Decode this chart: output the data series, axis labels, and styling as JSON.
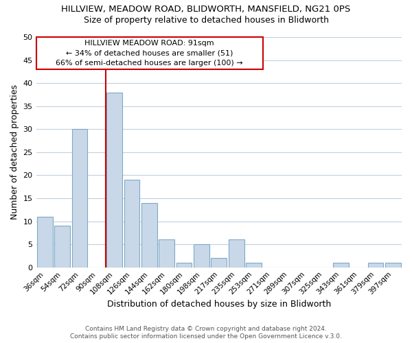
{
  "title": "HILLVIEW, MEADOW ROAD, BLIDWORTH, MANSFIELD, NG21 0PS",
  "subtitle": "Size of property relative to detached houses in Blidworth",
  "xlabel": "Distribution of detached houses by size in Blidworth",
  "ylabel": "Number of detached properties",
  "bar_color": "#c8d8e8",
  "bar_edge_color": "#7fa8c8",
  "background_color": "#ffffff",
  "grid_color": "#c0d0e0",
  "categories": [
    "36sqm",
    "54sqm",
    "72sqm",
    "90sqm",
    "108sqm",
    "126sqm",
    "144sqm",
    "162sqm",
    "180sqm",
    "198sqm",
    "217sqm",
    "235sqm",
    "253sqm",
    "271sqm",
    "289sqm",
    "307sqm",
    "325sqm",
    "343sqm",
    "361sqm",
    "379sqm",
    "397sqm"
  ],
  "values": [
    11,
    9,
    30,
    0,
    38,
    19,
    14,
    6,
    1,
    5,
    2,
    6,
    1,
    0,
    0,
    0,
    0,
    1,
    0,
    1,
    1
  ],
  "ylim": [
    0,
    50
  ],
  "yticks": [
    0,
    5,
    10,
    15,
    20,
    25,
    30,
    35,
    40,
    45,
    50
  ],
  "marker_bar_index": 3,
  "marker_color": "#cc0000",
  "annotation_title": "HILLVIEW MEADOW ROAD: 91sqm",
  "annotation_line1": "← 34% of detached houses are smaller (51)",
  "annotation_line2": "66% of semi-detached houses are larger (100) →",
  "footer1": "Contains HM Land Registry data © Crown copyright and database right 2024.",
  "footer2": "Contains public sector information licensed under the Open Government Licence v.3.0."
}
